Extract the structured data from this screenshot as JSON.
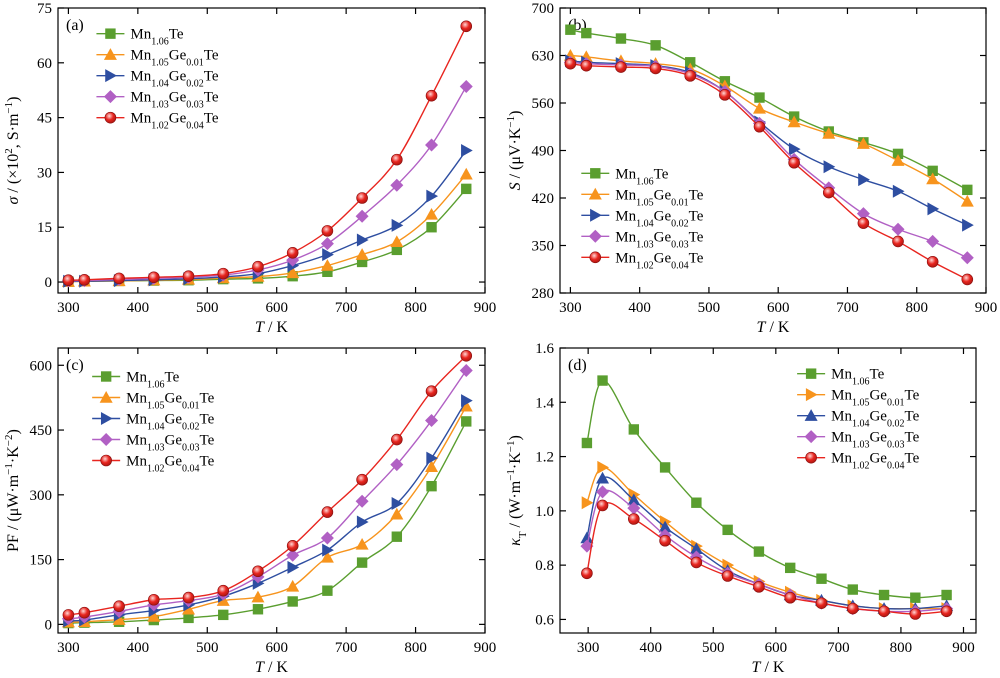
{
  "chart_data": [
    {
      "type": "line",
      "panel_label": "(a)",
      "xlabel": "T / K",
      "ylabel": "σ / (×10², S·m⁻¹)",
      "xlim": [
        285,
        900
      ],
      "ylim": [
        -3,
        75
      ],
      "xticks": [
        300,
        400,
        500,
        600,
        700,
        800,
        900
      ],
      "yticks": [
        0,
        15,
        30,
        45,
        60,
        75
      ],
      "x": [
        300,
        323,
        373,
        423,
        473,
        523,
        573,
        623,
        673,
        723,
        773,
        823,
        873
      ],
      "legend_position": "top-left",
      "series": [
        {
          "name": "Mn1.06Te",
          "name_base": "Mn",
          "name_sub1": "1.06",
          "name_mid": "Te",
          "name_sub2": "",
          "name_end": "",
          "marker": "square",
          "color": "#5a9e2f",
          "values": [
            0.1,
            0.2,
            0.3,
            0.4,
            0.5,
            0.8,
            1.0,
            1.6,
            2.8,
            5.5,
            8.8,
            15.0,
            25.5
          ]
        },
        {
          "name": "Mn1.05Ge0.01Te",
          "name_base": "Mn",
          "name_sub1": "1.05",
          "name_mid": "Ge",
          "name_sub2": "0.01",
          "name_end": "Te",
          "marker": "triangle-up",
          "color": "#f7941d",
          "values": [
            0.1,
            0.2,
            0.3,
            0.5,
            0.7,
            1.1,
            1.5,
            2.5,
            4.5,
            7.5,
            11.0,
            18.5,
            29.5
          ]
        },
        {
          "name": "Mn1.04Ge0.02Te",
          "name_base": "Mn",
          "name_sub1": "1.04",
          "name_mid": "Ge",
          "name_sub2": "0.02",
          "name_end": "Te",
          "marker": "triangle-right",
          "color": "#2e4ea1",
          "values": [
            0.2,
            0.2,
            0.4,
            0.6,
            0.9,
            1.4,
            2.3,
            4.5,
            7.5,
            11.5,
            15.5,
            23.5,
            36.0
          ]
        },
        {
          "name": "Mn1.03Ge0.03Te",
          "name_base": "Mn",
          "name_sub1": "1.03",
          "name_mid": "Ge",
          "name_sub2": "0.03",
          "name_end": "Te",
          "marker": "diamond",
          "color": "#b160c4",
          "values": [
            0.3,
            0.4,
            0.7,
            1.0,
            1.3,
            1.9,
            3.3,
            6.0,
            10.5,
            18.0,
            26.5,
            37.5,
            53.5
          ]
        },
        {
          "name": "Mn1.02Ge0.04Te",
          "name_base": "Mn",
          "name_sub1": "1.02",
          "name_mid": "Ge",
          "name_sub2": "0.04",
          "name_end": "Te",
          "marker": "circle",
          "color": "#e8251f",
          "values": [
            0.5,
            0.6,
            1.0,
            1.3,
            1.6,
            2.3,
            4.2,
            8.0,
            14.0,
            23.0,
            33.5,
            51.0,
            70.0
          ]
        }
      ]
    },
    {
      "type": "line",
      "panel_label": "(b)",
      "xlabel": "T / K",
      "ylabel": "S / (μV·K⁻¹)",
      "xlim": [
        285,
        900
      ],
      "ylim": [
        280,
        700
      ],
      "xticks": [
        300,
        400,
        500,
        600,
        700,
        800,
        900
      ],
      "yticks": [
        280,
        350,
        420,
        490,
        560,
        630,
        700
      ],
      "x": [
        300,
        323,
        373,
        423,
        473,
        523,
        573,
        623,
        673,
        723,
        773,
        823,
        873
      ],
      "legend_position": "bottom-left",
      "series": [
        {
          "name": "Mn1.06Te",
          "name_base": "Mn",
          "name_sub1": "1.06",
          "name_mid": "Te",
          "name_sub2": "",
          "name_end": "",
          "marker": "square",
          "color": "#5a9e2f",
          "values": [
            668,
            663,
            655,
            645,
            620,
            592,
            568,
            540,
            518,
            502,
            485,
            460,
            432
          ]
        },
        {
          "name": "Mn1.05Ge0.01Te",
          "name_base": "Mn",
          "name_sub1": "1.05",
          "name_mid": "Ge",
          "name_sub2": "0.01",
          "name_end": "Te",
          "marker": "triangle-up",
          "color": "#f7941d",
          "values": [
            630,
            628,
            622,
            618,
            610,
            585,
            552,
            532,
            515,
            500,
            475,
            448,
            415
          ]
        },
        {
          "name": "Mn1.04Ge0.02Te",
          "name_base": "Mn",
          "name_sub1": "1.04",
          "name_mid": "Ge",
          "name_sub2": "0.02",
          "name_end": "Te",
          "marker": "triangle-right",
          "color": "#2e4ea1",
          "values": [
            622,
            620,
            618,
            615,
            605,
            577,
            532,
            492,
            466,
            447,
            430,
            404,
            380
          ]
        },
        {
          "name": "Mn1.03Ge0.03Te",
          "name_base": "Mn",
          "name_sub1": "1.03",
          "name_mid": "Ge",
          "name_sub2": "0.03",
          "name_end": "Te",
          "marker": "diamond",
          "color": "#b160c4",
          "values": [
            620,
            618,
            616,
            614,
            603,
            577,
            530,
            477,
            435,
            397,
            374,
            356,
            332
          ]
        },
        {
          "name": "Mn1.02Ge0.04Te",
          "name_base": "Mn",
          "name_sub1": "1.02",
          "name_mid": "Ge",
          "name_sub2": "0.04",
          "name_end": "Te",
          "marker": "circle",
          "color": "#e8251f",
          "values": [
            618,
            615,
            613,
            611,
            600,
            572,
            525,
            472,
            428,
            383,
            356,
            326,
            300
          ]
        }
      ]
    },
    {
      "type": "line",
      "panel_label": "(c)",
      "xlabel": "T / K",
      "ylabel": "PF / (μW·m⁻¹·K⁻²)",
      "xlim": [
        285,
        900
      ],
      "ylim": [
        -20,
        640
      ],
      "xticks": [
        300,
        400,
        500,
        600,
        700,
        800,
        900
      ],
      "yticks": [
        0,
        150,
        300,
        450,
        600
      ],
      "x": [
        300,
        323,
        373,
        423,
        473,
        523,
        573,
        623,
        673,
        723,
        773,
        823,
        873
      ],
      "legend_position": "top-left",
      "series": [
        {
          "name": "Mn1.06Te",
          "name_base": "Mn",
          "name_sub1": "1.06",
          "name_mid": "Te",
          "name_sub2": "",
          "name_end": "",
          "marker": "square",
          "color": "#5a9e2f",
          "values": [
            3,
            4,
            6,
            10,
            15,
            22,
            35,
            53,
            78,
            143,
            203,
            320,
            470
          ]
        },
        {
          "name": "Mn1.05Ge0.01Te",
          "name_base": "Mn",
          "name_sub1": "1.05",
          "name_mid": "Ge",
          "name_sub2": "0.01",
          "name_end": "Te",
          "marker": "triangle-up",
          "color": "#f7941d",
          "values": [
            5,
            6,
            11,
            18,
            35,
            55,
            63,
            88,
            155,
            185,
            255,
            365,
            505
          ]
        },
        {
          "name": "Mn1.04Ge0.02Te",
          "name_base": "Mn",
          "name_sub1": "1.04",
          "name_mid": "Ge",
          "name_sub2": "0.02",
          "name_end": "Te",
          "marker": "triangle-right",
          "color": "#2e4ea1",
          "values": [
            8,
            10,
            22,
            32,
            45,
            65,
            95,
            132,
            172,
            237,
            280,
            385,
            518
          ]
        },
        {
          "name": "Mn1.03Ge0.03Te",
          "name_base": "Mn",
          "name_sub1": "1.03",
          "name_mid": "Ge",
          "name_sub2": "0.03",
          "name_end": "Te",
          "marker": "diamond",
          "color": "#b160c4",
          "values": [
            13,
            17,
            30,
            45,
            55,
            70,
            110,
            160,
            200,
            285,
            370,
            472,
            588
          ]
        },
        {
          "name": "Mn1.02Ge0.04Te",
          "name_base": "Mn",
          "name_sub1": "1.02",
          "name_mid": "Ge",
          "name_sub2": "0.04",
          "name_end": "Te",
          "marker": "circle",
          "color": "#e8251f",
          "values": [
            22,
            27,
            42,
            57,
            62,
            78,
            123,
            182,
            260,
            335,
            428,
            540,
            622
          ]
        }
      ]
    },
    {
      "type": "line",
      "panel_label": "(d)",
      "xlabel": "T / K",
      "ylabel": "κT / (W·m⁻¹·K⁻¹)",
      "xlim": [
        255,
        920
      ],
      "ylim": [
        0.55,
        1.6
      ],
      "xticks": [
        300,
        400,
        500,
        600,
        700,
        800,
        900
      ],
      "yticks": [
        0.6,
        0.8,
        1.0,
        1.2,
        1.4,
        1.6
      ],
      "x": [
        298,
        323,
        373,
        423,
        473,
        523,
        573,
        623,
        673,
        723,
        773,
        823,
        873
      ],
      "legend_position": "top-right",
      "series": [
        {
          "name": "Mn1.06Te",
          "name_base": "Mn",
          "name_sub1": "1.06",
          "name_mid": "Te",
          "name_sub2": "",
          "name_end": "",
          "marker": "square",
          "color": "#5a9e2f",
          "values": [
            1.25,
            1.48,
            1.3,
            1.16,
            1.03,
            0.93,
            0.85,
            0.79,
            0.75,
            0.71,
            0.69,
            0.68,
            0.69
          ]
        },
        {
          "name": "Mn1.05Ge0.01Te",
          "name_base": "Mn",
          "name_sub1": "1.05",
          "name_mid": "Ge",
          "name_sub2": "0.01",
          "name_end": "Te",
          "marker": "triangle-right",
          "color": "#f7941d",
          "values": [
            1.03,
            1.16,
            1.06,
            0.96,
            0.87,
            0.8,
            0.74,
            0.7,
            0.67,
            0.65,
            0.64,
            0.64,
            0.64
          ]
        },
        {
          "name": "Mn1.04Ge0.02Te",
          "name_base": "Mn",
          "name_sub1": "1.04",
          "name_mid": "Ge",
          "name_sub2": "0.02",
          "name_end": "Te",
          "marker": "triangle-up",
          "color": "#2e4ea1",
          "values": [
            0.9,
            1.12,
            1.04,
            0.94,
            0.86,
            0.78,
            0.73,
            0.69,
            0.67,
            0.65,
            0.64,
            0.64,
            0.65
          ]
        },
        {
          "name": "Mn1.03Ge0.03Te",
          "name_base": "Mn",
          "name_sub1": "1.03",
          "name_mid": "Ge",
          "name_sub2": "0.03",
          "name_end": "Te",
          "marker": "diamond",
          "color": "#b160c4",
          "values": [
            0.87,
            1.07,
            1.01,
            0.91,
            0.83,
            0.77,
            0.73,
            0.69,
            0.66,
            0.64,
            0.63,
            0.63,
            0.64
          ]
        },
        {
          "name": "Mn1.02Ge0.04Te",
          "name_base": "Mn",
          "name_sub1": "1.02",
          "name_mid": "Ge",
          "name_sub2": "0.04",
          "name_end": "Te",
          "marker": "circle",
          "color": "#e8251f",
          "values": [
            0.77,
            1.02,
            0.97,
            0.89,
            0.81,
            0.76,
            0.72,
            0.68,
            0.66,
            0.64,
            0.63,
            0.62,
            0.63
          ]
        }
      ]
    }
  ]
}
